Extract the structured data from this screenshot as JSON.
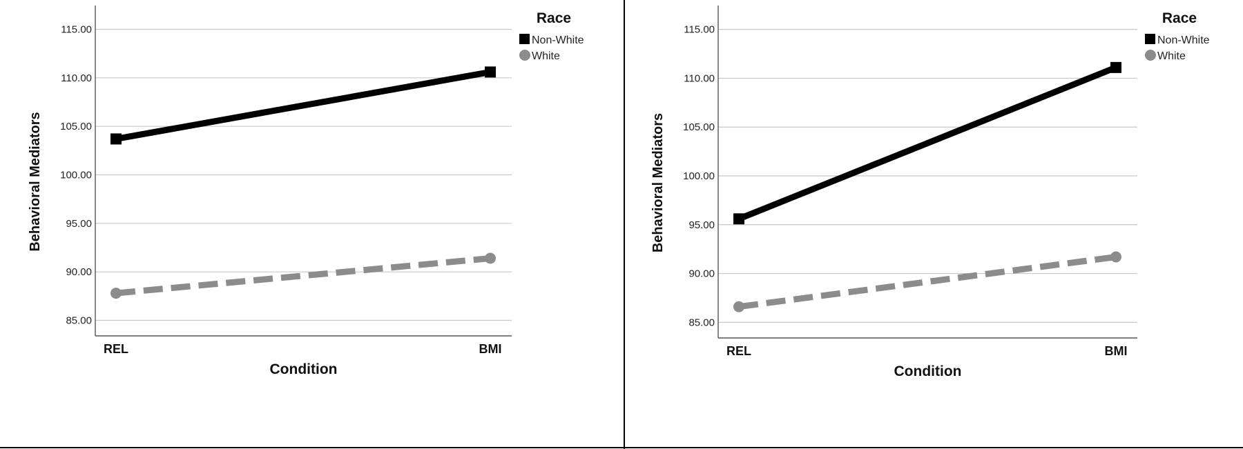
{
  "chart_data": [
    {
      "type": "line",
      "categories": [
        "REL",
        "BMI"
      ],
      "xlabel": "Condition",
      "ylabel": "Behavioral Mediators",
      "ylim": [
        83.4,
        116.6
      ],
      "yticks": [
        "85.00",
        "90.00",
        "95.00",
        "100.00",
        "105.00",
        "110.00",
        "115.00"
      ],
      "grid": true,
      "legend": {
        "title": "Race",
        "position": "top-right"
      },
      "series": [
        {
          "name": "Non-White",
          "values": [
            103.7,
            110.6
          ],
          "color": "#000000",
          "marker": "square",
          "dash": "solid"
        },
        {
          "name": "White",
          "values": [
            87.8,
            91.4
          ],
          "color": "#8c8c8c",
          "marker": "circle",
          "dash": "dashed"
        }
      ]
    },
    {
      "type": "line",
      "categories": [
        "REL",
        "BMI"
      ],
      "xlabel": "Condition",
      "ylabel": "Behavioral Mediators",
      "ylim": [
        83.4,
        116.6
      ],
      "yticks": [
        "85.00",
        "90.00",
        "95.00",
        "100.00",
        "105.00",
        "110.00",
        "115.00"
      ],
      "grid": true,
      "legend": {
        "title": "Race",
        "position": "top-right"
      },
      "series": [
        {
          "name": "Non-White",
          "values": [
            95.6,
            111.1
          ],
          "color": "#000000",
          "marker": "square",
          "dash": "solid"
        },
        {
          "name": "White",
          "values": [
            86.6,
            91.7
          ],
          "color": "#8c8c8c",
          "marker": "circle",
          "dash": "dashed"
        }
      ]
    }
  ]
}
